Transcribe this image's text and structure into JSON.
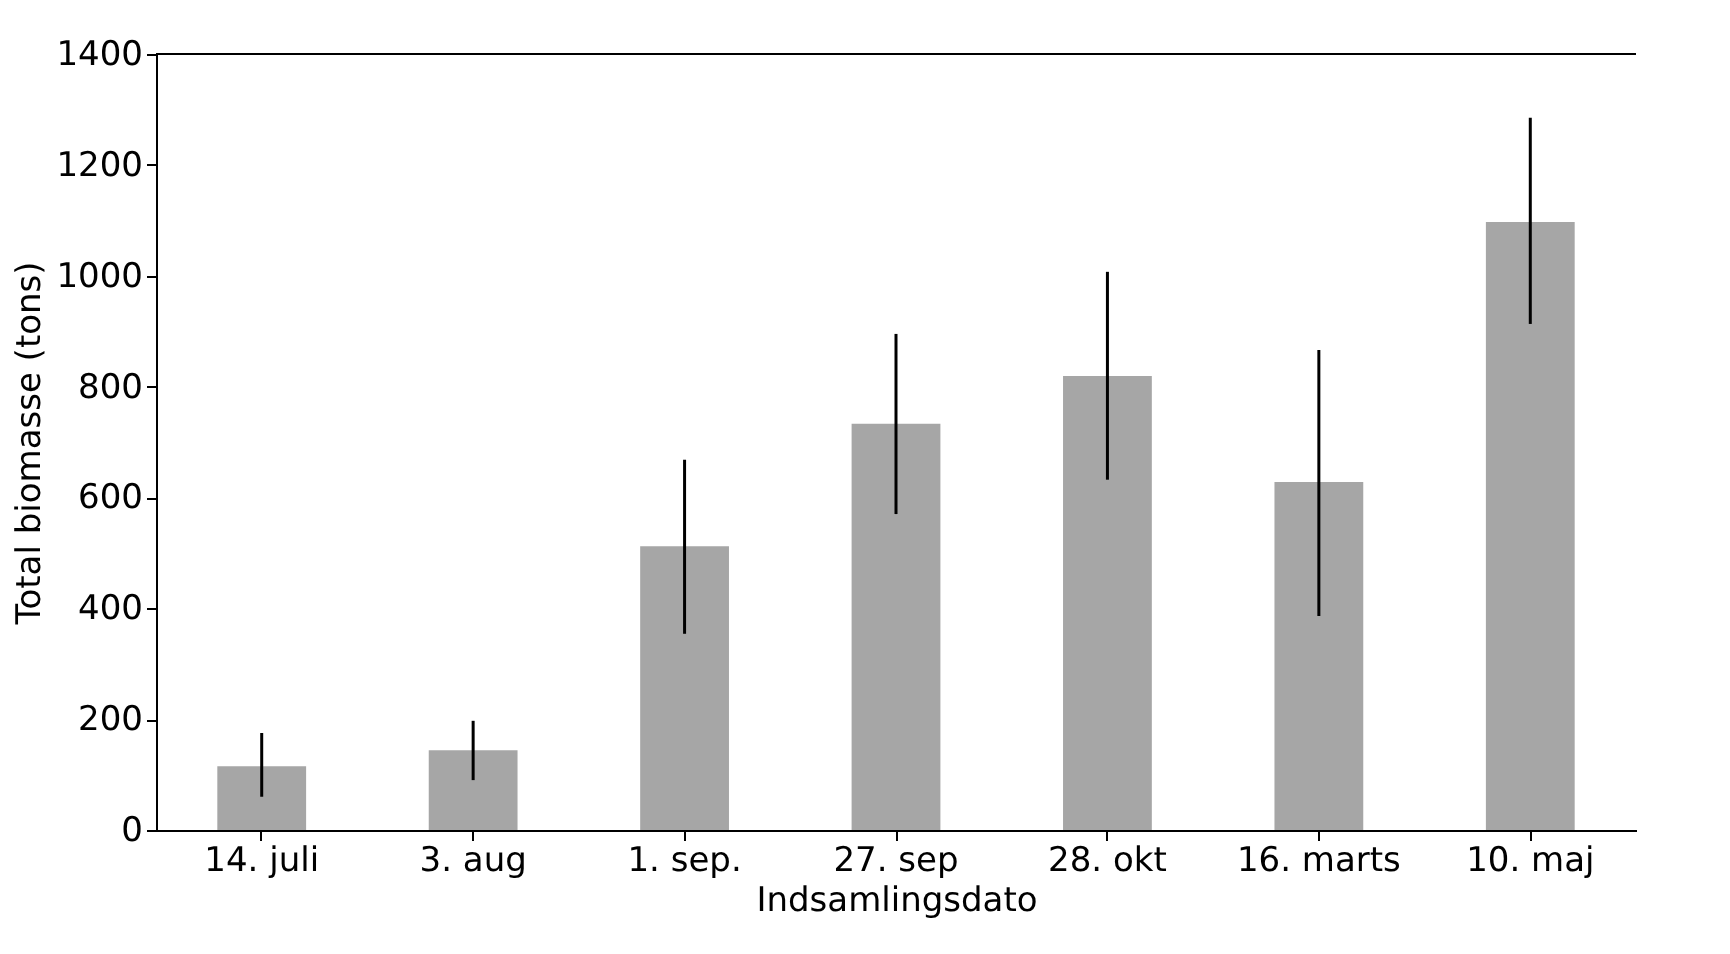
{
  "chart_data": {
    "type": "bar",
    "xlabel": "Indsamlingsdato",
    "ylabel": "Total biomasse (tons)",
    "categories": [
      "14. juli",
      "3. aug",
      "1. sep.",
      "27. sep",
      "28. okt",
      "16. marts",
      "10. maj"
    ],
    "values": [
      115,
      144,
      512,
      733,
      819,
      628,
      1097
    ],
    "errors": [
      [
        60,
        175
      ],
      [
        90,
        197
      ],
      [
        354,
        668
      ],
      [
        570,
        895
      ],
      [
        632,
        1007
      ],
      [
        386,
        866
      ],
      [
        913,
        1285
      ]
    ],
    "color": "#a6a6a6",
    "ylim": [
      0,
      1400
    ],
    "yticks": [
      0,
      200,
      400,
      600,
      800,
      1000,
      1200,
      1400
    ],
    "grid": false
  }
}
